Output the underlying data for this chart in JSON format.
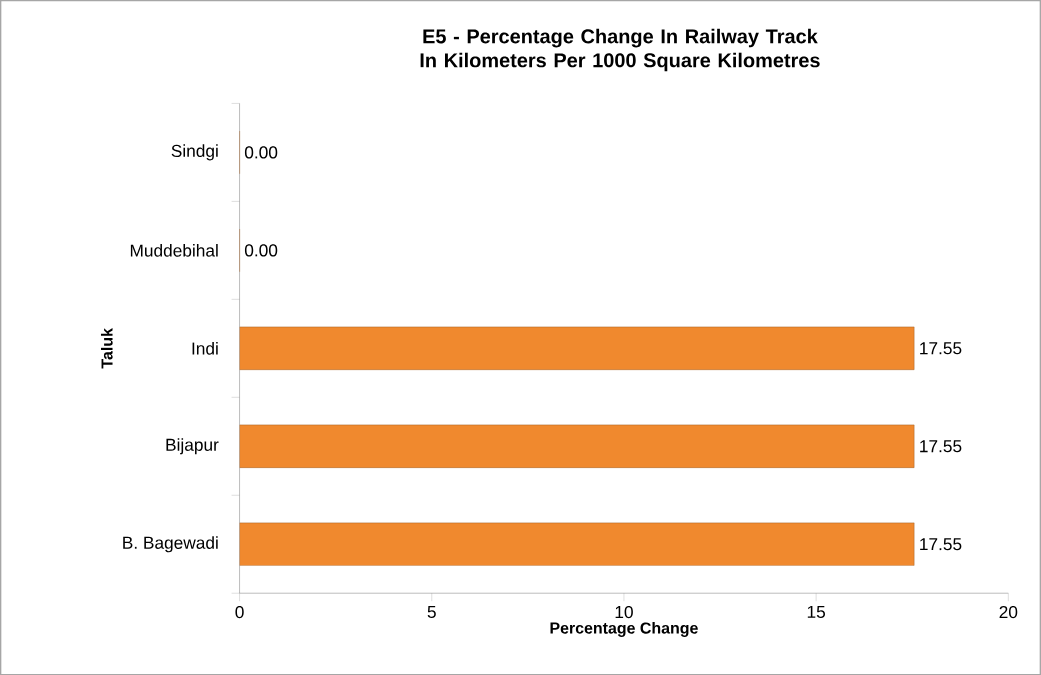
{
  "chart_data": {
    "type": "bar",
    "orientation": "horizontal",
    "title": "E5 - Percentage Change In  Railway Track In Kilometers Per 1000 Square Kilometres",
    "xlabel": "Percentage Change",
    "ylabel": "Taluk",
    "categories": [
      "Sindgi",
      "Muddebihal",
      "Indi",
      "Bijapur",
      "B. Bagewadi"
    ],
    "values": [
      0,
      0,
      17.55,
      17.55,
      17.55
    ],
    "value_labels": [
      "0.00",
      "0.00",
      "17.55",
      "17.55",
      "17.55"
    ],
    "color": "#f0892e",
    "xlim": [
      0,
      20
    ],
    "xticks": [
      0,
      5,
      10,
      15,
      20
    ],
    "grid": false
  }
}
